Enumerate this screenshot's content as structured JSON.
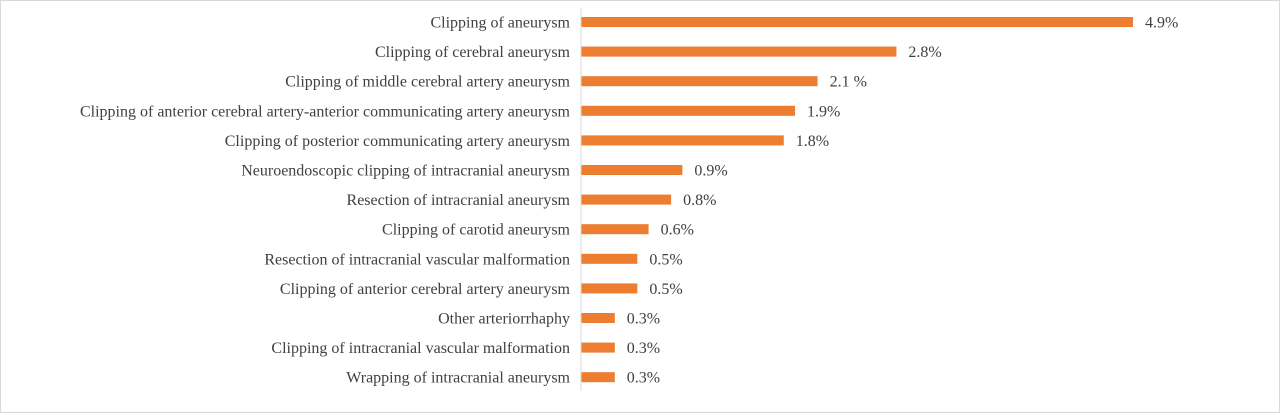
{
  "chart_data": {
    "type": "bar",
    "orientation": "horizontal",
    "categories": [
      "Clipping of aneurysm",
      "Clipping of cerebral aneurysm",
      "Clipping of middle cerebral artery aneurysm",
      "Clipping of anterior cerebral artery-anterior communicating artery aneurysm",
      "Clipping of posterior communicating artery aneurysm",
      "Neuroendoscopic clipping of intracranial aneurysm",
      "Resection of intracranial aneurysm",
      "Clipping of carotid aneurysm",
      "Resection of intracranial vascular malformation",
      "Clipping of anterior cerebral artery aneurysm",
      "Other arteriorrhaphy",
      "Clipping of intracranial vascular malformation",
      "Wrapping of intracranial aneurysm"
    ],
    "values": [
      4.9,
      2.8,
      2.1,
      1.9,
      1.8,
      0.9,
      0.8,
      0.6,
      0.5,
      0.5,
      0.3,
      0.3,
      0.3
    ],
    "data_labels": [
      "4.9%",
      "2.8%",
      "2.1 %",
      "1.9%",
      "1.8%",
      "0.9%",
      "0.8%",
      "0.6%",
      "0.5%",
      "0.5%",
      "0.3%",
      "0.3%",
      "0.3%"
    ],
    "title": "",
    "xlabel": "",
    "ylabel": "",
    "xlim": [
      0,
      5
    ],
    "grid": false,
    "legend": "none",
    "bar_color": "#ED7D31",
    "text_color": "#404040",
    "axis_color": "#D9D9D9"
  }
}
